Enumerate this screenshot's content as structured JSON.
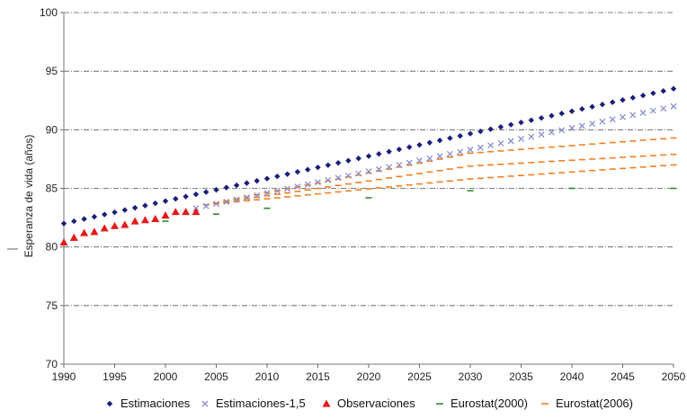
{
  "chart_data": {
    "type": "scatter",
    "ylabel": "Esperanza de vida (años)",
    "xlabel": "",
    "xlim": [
      1990,
      2050
    ],
    "ylim": [
      70,
      100
    ],
    "x_ticks": [
      "1990",
      "1995",
      "2000",
      "2005",
      "2010",
      "2015",
      "2020",
      "2025",
      "2030",
      "2035",
      "2040",
      "2045",
      "2050"
    ],
    "y_ticks": [
      "70",
      "75",
      "80",
      "85",
      "90",
      "95",
      "100"
    ],
    "grid": "horizontal dashed",
    "legend_position": "bottom",
    "legend": [
      "Estimaciones",
      "Estimaciones-1,5",
      "Observaciones",
      "Eurostat(2000)",
      "Eurostat(2006)"
    ],
    "series": [
      {
        "name": "Estimaciones",
        "marker": "diamond",
        "color": "#1a1f7a",
        "x_start": 1990,
        "x_end": 2050,
        "step": 1,
        "y_start": 82.0,
        "y_end": 93.5
      },
      {
        "name": "Estimaciones-1,5",
        "marker": "x",
        "color": "#8a8fcf",
        "x_start": 2003,
        "x_end": 2050,
        "step": 1,
        "y_start": 83.3,
        "y_end": 92.0
      },
      {
        "name": "Observaciones",
        "marker": "triangle",
        "color": "#e41a1a",
        "x": [
          1990,
          1991,
          1992,
          1993,
          1994,
          1995,
          1996,
          1997,
          1998,
          1999,
          2000,
          2001,
          2002,
          2003
        ],
        "y": [
          80.4,
          80.8,
          81.2,
          81.3,
          81.6,
          81.8,
          81.9,
          82.2,
          82.3,
          82.4,
          82.7,
          83.0,
          83.0,
          83.0
        ]
      },
      {
        "name": "Eurostat(2000)",
        "marker": "dash",
        "color": "#2e8b2e",
        "x": [
          2000,
          2005,
          2010,
          2020,
          2030,
          2040,
          2050
        ],
        "y": [
          82.2,
          82.8,
          83.3,
          84.2,
          84.8,
          85.0,
          85.0
        ]
      },
      {
        "name": "Eurostat(2006)",
        "marker": "dash",
        "color": "#f08020",
        "lines": [
          {
            "x_start": 2004,
            "y_start": 83.6,
            "knee_x": 2030,
            "knee_y": 88.0,
            "x_end": 2050,
            "y_end": 89.3
          },
          {
            "x_start": 2004,
            "y_start": 83.6,
            "knee_x": 2030,
            "knee_y": 86.9,
            "x_end": 2050,
            "y_end": 87.9
          },
          {
            "x_start": 2004,
            "y_start": 83.6,
            "knee_x": 2030,
            "knee_y": 85.8,
            "x_end": 2050,
            "y_end": 87.0
          }
        ]
      }
    ]
  }
}
